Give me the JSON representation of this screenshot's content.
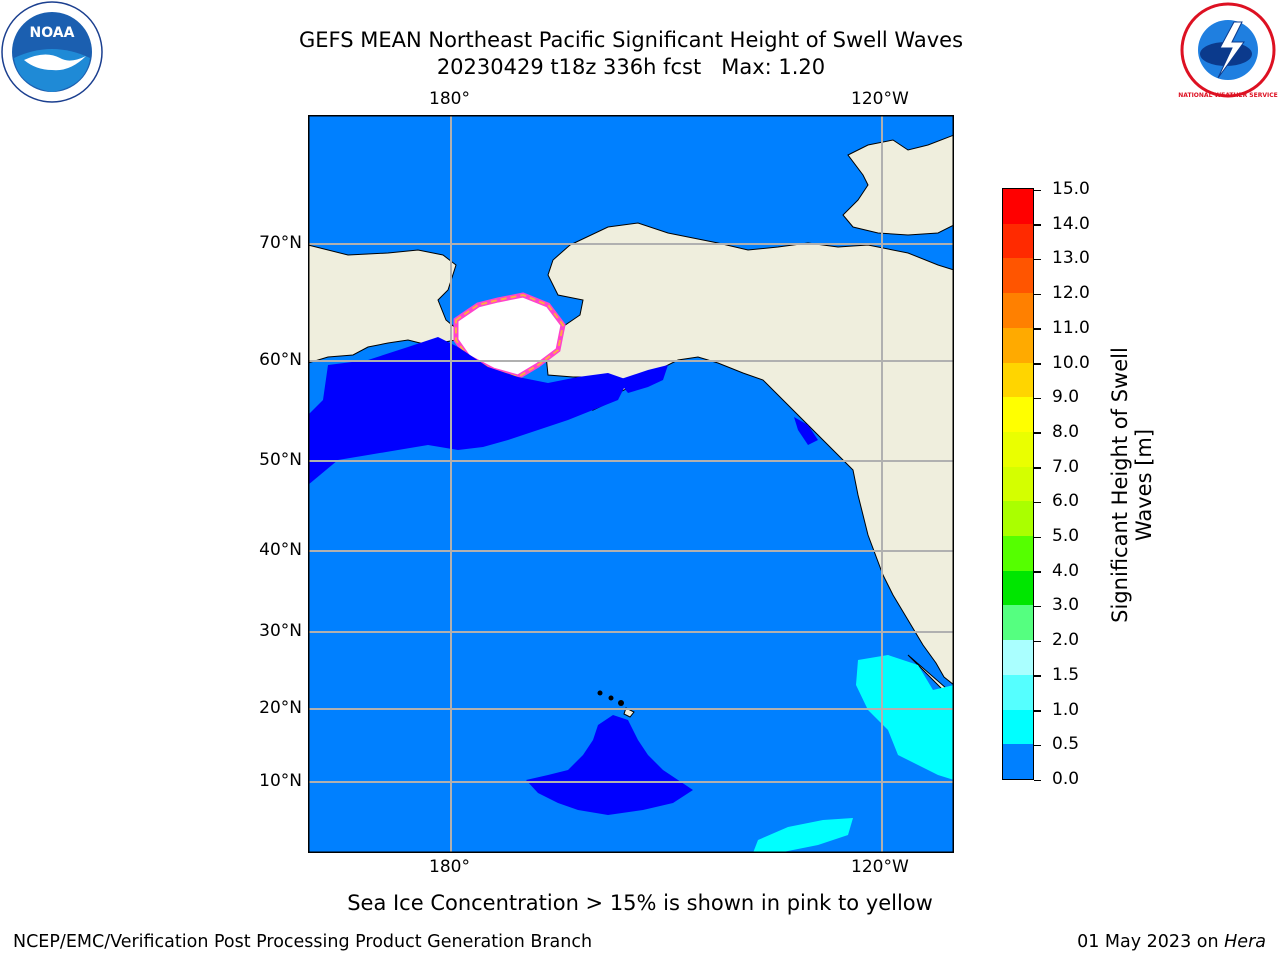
{
  "header": {
    "title_line1": "GEFS MEAN Northeast Pacific Significant Height of Swell Waves",
    "title_line2": "20230429 t18z 336h fcst   Max: 1.20"
  },
  "logos": {
    "left": {
      "icon": "noaa-logo",
      "text": "NOAA"
    },
    "right": {
      "icon": "nws-logo",
      "text": "NATIONAL WEATHER SERVICE"
    }
  },
  "map": {
    "top_axis": {
      "labels": [
        "180°",
        "120°W"
      ]
    },
    "bottom_axis": {
      "labels": [
        "180°",
        "120°W"
      ]
    },
    "lat_labels": [
      "70°N",
      "60°N",
      "50°N",
      "40°N",
      "30°N",
      "20°N",
      "10°N"
    ],
    "colors": {
      "ocean_low": "#0000ff",
      "ocean_mid": "#0080ff",
      "swell_high": "#00ffff",
      "land": "#efeedd",
      "ice_pink": "#ff44cc",
      "ice_orange": "#ffaa44",
      "ice_white": "#ffffff"
    }
  },
  "colorbar": {
    "title": "Significant Height of Swell Waves [m]",
    "title_line1": "Significant Height of Swell",
    "title_line2": "Waves [m]",
    "labels": [
      "15.0",
      "14.0",
      "13.0",
      "12.0",
      "11.0",
      "10.0",
      "9.0",
      "8.0",
      "7.0",
      "6.0",
      "5.0",
      "4.0",
      "3.0",
      "2.0",
      "1.5",
      "1.0",
      "0.5",
      "0.0"
    ],
    "colors": [
      "#ff0000",
      "#ff2a00",
      "#ff5500",
      "#ff8000",
      "#ffaa00",
      "#ffd500",
      "#ffff00",
      "#eaff00",
      "#d4ff00",
      "#aaff00",
      "#55ff00",
      "#00e600",
      "#55ff80",
      "#aaffff",
      "#55ffff",
      "#00ffff",
      "#0080ff",
      "#0000ff"
    ]
  },
  "note": "Sea Ice Concentration > 15% is shown in pink to yellow",
  "footer": {
    "left": "NCEP/EMC/Verification Post Processing Product Generation Branch",
    "right_prefix": "01 May 2023 on ",
    "right_machine": "Hera"
  }
}
